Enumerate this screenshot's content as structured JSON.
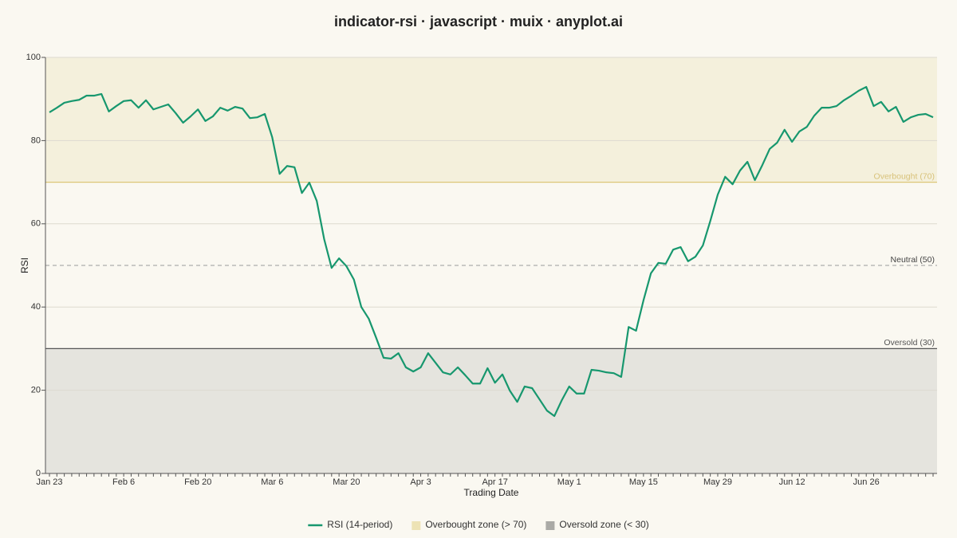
{
  "chart_data": {
    "type": "line",
    "title": "indicator-rsi · javascript · muix · anyplot.ai",
    "x_label": "Trading Date",
    "y_label": "RSI",
    "categories": [
      "Jan 23",
      null,
      null,
      null,
      null,
      null,
      null,
      null,
      null,
      null,
      "Feb 6",
      null,
      null,
      null,
      null,
      null,
      null,
      null,
      null,
      null,
      "Feb 20",
      null,
      null,
      null,
      null,
      null,
      null,
      null,
      null,
      null,
      "Mar 6",
      null,
      null,
      null,
      null,
      null,
      null,
      null,
      null,
      null,
      "Mar 20",
      null,
      null,
      null,
      null,
      null,
      null,
      null,
      null,
      null,
      "Apr 3",
      null,
      null,
      null,
      null,
      null,
      null,
      null,
      null,
      null,
      "Apr 17",
      null,
      null,
      null,
      null,
      null,
      null,
      null,
      null,
      null,
      "May 1",
      null,
      null,
      null,
      null,
      null,
      null,
      null,
      null,
      null,
      "May 15",
      null,
      null,
      null,
      null,
      null,
      null,
      null,
      null,
      null,
      "May 29",
      null,
      null,
      null,
      null,
      null,
      null,
      null,
      null,
      null,
      "Jun 12",
      null,
      null,
      null,
      null,
      null,
      null,
      null,
      null,
      null,
      "Jun 26",
      null,
      null,
      null,
      null,
      null,
      null,
      null,
      null,
      null
    ],
    "series": [
      {
        "name": "RSI (14-period)",
        "color": "#17976e",
        "values": [
          86.8,
          87.9,
          89.1,
          89.5,
          89.8,
          90.8,
          90.8,
          91.2,
          87.0,
          88.3,
          89.5,
          89.7,
          87.9,
          89.7,
          87.5,
          88.1,
          88.7,
          86.6,
          84.3,
          85.8,
          87.5,
          84.7,
          85.8,
          87.9,
          87.2,
          88.1,
          87.7,
          85.4,
          85.6,
          86.4,
          80.8,
          72.0,
          73.9,
          73.6,
          67.4,
          69.9,
          65.5,
          56.3,
          49.4,
          51.7,
          49.8,
          46.6,
          40.0,
          37.2,
          32.6,
          27.8,
          27.6,
          28.9,
          25.5,
          24.5,
          25.5,
          28.9,
          26.6,
          24.3,
          23.8,
          25.5,
          23.6,
          21.6,
          21.6,
          25.3,
          21.8,
          23.8,
          19.9,
          17.2,
          20.9,
          20.5,
          17.8,
          15.1,
          13.8,
          17.6,
          20.9,
          19.2,
          19.2,
          24.9,
          24.7,
          24.3,
          24.1,
          23.2,
          35.2,
          34.3,
          41.6,
          48.1,
          50.6,
          50.4,
          53.8,
          54.4,
          51.0,
          52.1,
          54.8,
          60.7,
          67.0,
          71.3,
          69.5,
          72.8,
          74.9,
          70.5,
          74.1,
          78.0,
          79.5,
          82.6,
          79.7,
          82.2,
          83.3,
          86.0,
          87.9,
          87.9,
          88.3,
          89.7,
          90.8,
          92.0,
          92.9,
          88.3,
          89.3,
          87.0,
          88.1,
          84.5,
          85.6,
          86.2,
          86.4,
          85.6
        ]
      }
    ],
    "zones": [
      {
        "name": "Overbought zone (> 70)",
        "from": 70,
        "to": 100,
        "color": "#f4f0dc",
        "legend_color": "#ede3b5"
      },
      {
        "name": "Oversold zone (< 30)",
        "from": 0,
        "to": 30,
        "color": "#e5e4de",
        "legend_color": "#aaaaa6"
      }
    ],
    "reference_lines": [
      {
        "value": 70,
        "label": "Overbought (70)",
        "color": "#dcc677",
        "text_color": "#d8c27a",
        "dash": false
      },
      {
        "value": 50,
        "label": "Neutral (50)",
        "color": "#9a9a9a",
        "text_color": "#444444",
        "dash": true
      },
      {
        "value": 30,
        "label": "Oversold (30)",
        "color": "#555555",
        "text_color": "#555555",
        "dash": false
      }
    ],
    "ylim": [
      0,
      100
    ],
    "yticks": [
      0,
      20,
      40,
      60,
      80,
      100
    ],
    "grid": true
  }
}
